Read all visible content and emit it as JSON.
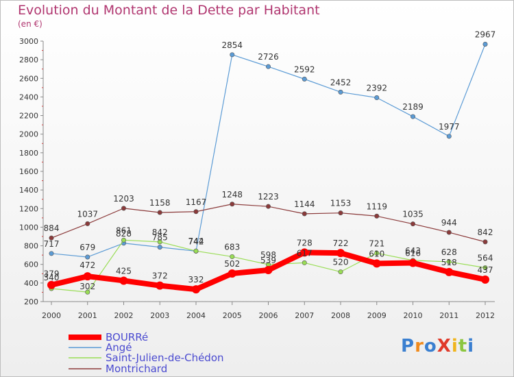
{
  "title": "Evolution du Montant de la Dette par Habitant",
  "unit": "(en €)",
  "logo": "ProXiti",
  "chart_data": {
    "type": "line",
    "title": "Evolution du Montant de la Dette par Habitant",
    "subtitle": "(en €)",
    "x": [
      2000,
      2001,
      2002,
      2003,
      2004,
      2005,
      2006,
      2007,
      2008,
      2009,
      2010,
      2011,
      2012
    ],
    "ylim": [
      200,
      3000
    ],
    "yticks": [
      200,
      400,
      600,
      800,
      1000,
      1200,
      1400,
      1600,
      1800,
      2000,
      2200,
      2400,
      2600,
      2800,
      3000
    ],
    "grid": false,
    "legend_position": "bottom-left",
    "series": [
      {
        "name": "BOURRé",
        "color": "#ff0000",
        "values": [
          379,
          472,
          425,
          372,
          332,
          502,
          539,
          728,
          722,
          610,
          616,
          518,
          437
        ]
      },
      {
        "name": "Angé",
        "color": "#5b9bd5",
        "values": [
          717,
          679,
          828,
          785,
          742,
          2854,
          2726,
          2592,
          2452,
          2392,
          2189,
          1977,
          2967
        ]
      },
      {
        "name": "Saint-Julien-de-Chédon",
        "color": "#99dd55",
        "values": [
          340,
          302,
          861,
          842,
          744,
          683,
          598,
          617,
          520,
          721,
          643,
          628,
          564
        ]
      },
      {
        "name": "Montrichard",
        "color": "#8b3a3a",
        "values": [
          884,
          1037,
          1203,
          1158,
          1167,
          1248,
          1223,
          1144,
          1153,
          1119,
          1035,
          944,
          842
        ]
      }
    ]
  }
}
